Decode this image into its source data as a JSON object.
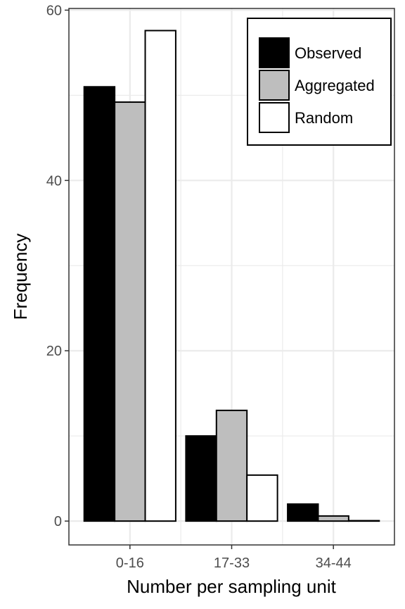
{
  "chart_data": {
    "type": "bar",
    "categories": [
      "0-16",
      "17-33",
      "34-44"
    ],
    "series": [
      {
        "name": "Observed",
        "color": "#000000",
        "values": [
          51,
          10,
          2
        ]
      },
      {
        "name": "Aggregated",
        "color": "#bebebe",
        "values": [
          49.2,
          13,
          0.6
        ]
      },
      {
        "name": "Random",
        "color": "#ffffff",
        "values": [
          57.6,
          5.4,
          0.05
        ]
      }
    ],
    "xlabel": "Number per sampling unit",
    "ylabel": "Frequency",
    "ylim": [
      -2.8,
      60.2
    ],
    "yticks": [
      0,
      20,
      40,
      60
    ],
    "grid": true,
    "legend_position": "top-right"
  }
}
